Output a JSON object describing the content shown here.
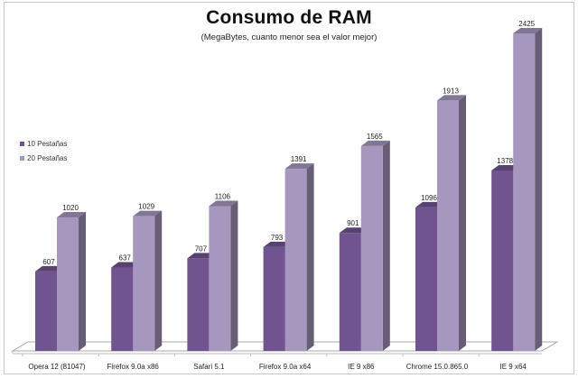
{
  "chart_data": {
    "type": "bar",
    "title": "Consumo de RAM",
    "subtitle": "(MegaBytes, cuanto menor sea el valor mejor)",
    "xlabel": "",
    "ylabel": "",
    "categories": [
      "Opera 12 (81047)",
      "Firefox 9.0a x86",
      "Safari 5.1",
      "Firefox 9.0a x64",
      "IE 9 x86",
      "Chrome 15.0.865.0",
      "IE 9 x64"
    ],
    "series": [
      {
        "name": "10 Pestañas",
        "values": [
          607,
          637,
          707,
          793,
          901,
          1096,
          1378
        ],
        "color": "#6f5490"
      },
      {
        "name": "20 Pestañas",
        "values": [
          1020,
          1029,
          1106,
          1391,
          1565,
          1913,
          2425
        ],
        "color": "#a697bf"
      }
    ],
    "ylim": [
      0,
      2500
    ],
    "grid": false,
    "legend_position": "left",
    "style": "3d-clustered-column",
    "data_labels": true
  },
  "header": {
    "title": "Consumo de RAM",
    "subtitle": "(MegaBytes, cuanto menor sea el valor mejor)"
  },
  "legend": {
    "items": [
      {
        "label": "10 Pestañas",
        "color": "#6f5490"
      },
      {
        "label": "20 Pestañas",
        "color": "#a697bf"
      }
    ]
  }
}
